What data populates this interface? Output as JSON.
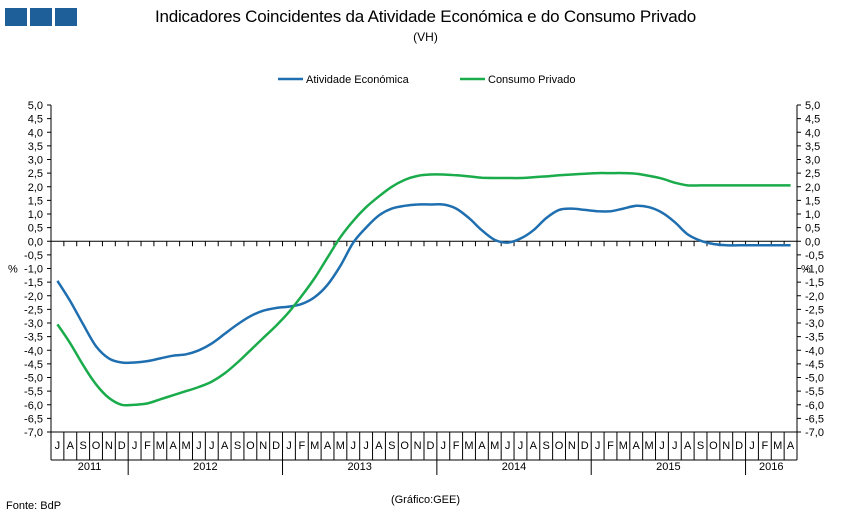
{
  "header": {
    "title": "Indicadores Coincidentes da Atividade Económica e do Consumo Privado",
    "subtitle": "(VH)"
  },
  "footer": {
    "source": "Fonte: BdP",
    "credit": "(Gráfico:GEE)"
  },
  "colors": {
    "logo": "#1f5f99",
    "atividade": "#1f6fb0",
    "consumo": "#1aab4b"
  },
  "chart_data": {
    "type": "line",
    "title": "Indicadores Coincidentes da Atividade Económica e do Consumo Privado",
    "subtitle": "(VH)",
    "ylabel_left": "%",
    "ylabel_right": "%",
    "ylim": [
      -7.0,
      5.0
    ],
    "ystep": 0.5,
    "y_ticks": [
      "5,0",
      "4,5",
      "4,0",
      "3,5",
      "3,0",
      "2,5",
      "2,0",
      "1,5",
      "1,0",
      "0,5",
      "0,0",
      "-0,5",
      "-1,0",
      "-1,5",
      "-2,0",
      "-2,5",
      "-3,0",
      "-3,5",
      "-4,0",
      "-4,5",
      "-5,0",
      "-5,5",
      "-6,0",
      "-6,5",
      "-7,0"
    ],
    "legend_position": "top-center",
    "grid": false,
    "x": [
      "2011-07",
      "2011-08",
      "2011-09",
      "2011-10",
      "2011-11",
      "2011-12",
      "2012-01",
      "2012-02",
      "2012-03",
      "2012-04",
      "2012-05",
      "2012-06",
      "2012-07",
      "2012-08",
      "2012-09",
      "2012-10",
      "2012-11",
      "2012-12",
      "2013-01",
      "2013-02",
      "2013-03",
      "2013-04",
      "2013-05",
      "2013-06",
      "2013-07",
      "2013-08",
      "2013-09",
      "2013-10",
      "2013-11",
      "2013-12",
      "2014-01",
      "2014-02",
      "2014-03",
      "2014-04",
      "2014-05",
      "2014-06",
      "2014-07",
      "2014-08",
      "2014-09",
      "2014-10",
      "2014-11",
      "2014-12",
      "2015-01",
      "2015-02",
      "2015-03",
      "2015-04",
      "2015-05",
      "2015-06",
      "2015-07",
      "2015-08",
      "2015-09",
      "2015-10",
      "2015-11",
      "2015-12",
      "2016-01",
      "2016-02",
      "2016-03",
      "2016-04"
    ],
    "month_labels": [
      "J",
      "A",
      "S",
      "O",
      "N",
      "D",
      "J",
      "F",
      "M",
      "A",
      "M",
      "J",
      "J",
      "A",
      "S",
      "O",
      "N",
      "D",
      "J",
      "F",
      "M",
      "A",
      "M",
      "J",
      "J",
      "A",
      "S",
      "O",
      "N",
      "D",
      "J",
      "F",
      "M",
      "A",
      "M",
      "J",
      "J",
      "A",
      "S",
      "O",
      "N",
      "D",
      "J",
      "F",
      "M",
      "A",
      "M",
      "J",
      "J",
      "A",
      "S",
      "O",
      "N",
      "D",
      "J",
      "F",
      "M",
      "A"
    ],
    "year_labels": [
      {
        "label": "2011",
        "start": 0,
        "end": 5
      },
      {
        "label": "2012",
        "start": 6,
        "end": 17
      },
      {
        "label": "2013",
        "start": 18,
        "end": 29
      },
      {
        "label": "2014",
        "start": 30,
        "end": 41
      },
      {
        "label": "2015",
        "start": 42,
        "end": 53
      },
      {
        "label": "2016",
        "start": 54,
        "end": 57
      }
    ],
    "series": [
      {
        "name": "Atividade Económica",
        "values": [
          -1.45,
          -2.2,
          -3.05,
          -3.85,
          -4.3,
          -4.45,
          -4.45,
          -4.4,
          -4.3,
          -4.2,
          -4.15,
          -4.0,
          -3.75,
          -3.4,
          -3.05,
          -2.75,
          -2.55,
          -2.45,
          -2.4,
          -2.3,
          -2.05,
          -1.6,
          -0.9,
          -0.05,
          0.5,
          0.95,
          1.2,
          1.3,
          1.35,
          1.35,
          1.35,
          1.2,
          0.85,
          0.4,
          0.05,
          -0.05,
          0.1,
          0.4,
          0.85,
          1.15,
          1.2,
          1.15,
          1.1,
          1.1,
          1.2,
          1.3,
          1.25,
          1.05,
          0.7,
          0.25,
          0.02,
          -0.1,
          -0.15,
          -0.15,
          -0.15,
          -0.15,
          -0.15,
          -0.15
        ]
      },
      {
        "name": "Consumo Privado",
        "values": [
          -3.05,
          -3.75,
          -4.55,
          -5.25,
          -5.75,
          -6.0,
          -6.0,
          -5.95,
          -5.8,
          -5.65,
          -5.5,
          -5.35,
          -5.15,
          -4.85,
          -4.45,
          -4.0,
          -3.55,
          -3.1,
          -2.6,
          -2.0,
          -1.35,
          -0.6,
          0.15,
          0.75,
          1.25,
          1.65,
          2.0,
          2.25,
          2.4,
          2.45,
          2.45,
          2.42,
          2.38,
          2.33,
          2.32,
          2.32,
          2.32,
          2.35,
          2.38,
          2.42,
          2.45,
          2.48,
          2.5,
          2.5,
          2.5,
          2.48,
          2.4,
          2.3,
          2.15,
          2.05,
          2.05,
          2.05,
          2.05,
          2.05,
          2.05,
          2.05,
          2.05,
          2.05
        ]
      }
    ]
  }
}
